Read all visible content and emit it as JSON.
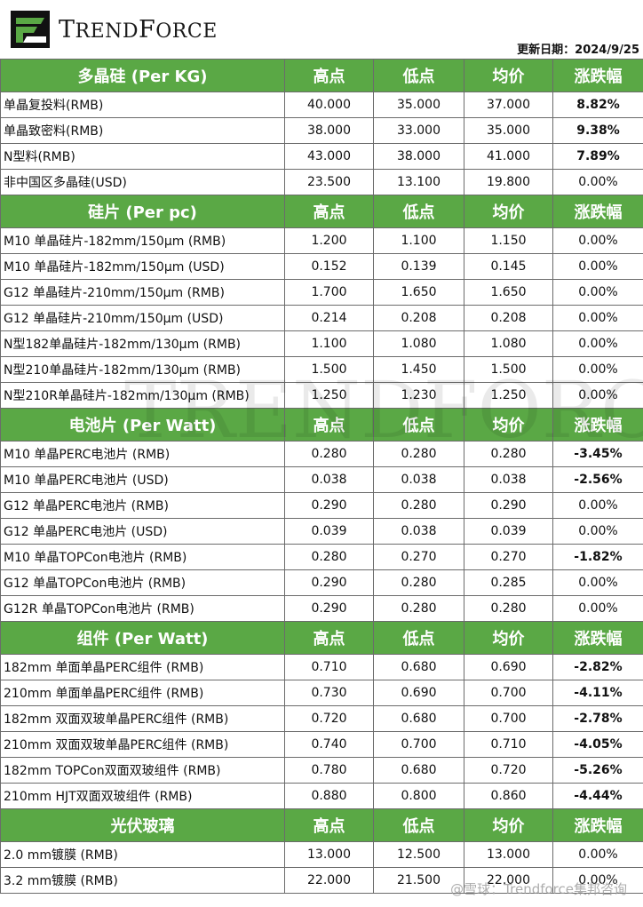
{
  "brand": {
    "name_big_T": "T",
    "name_rest1": "REND",
    "name_big_F": "F",
    "name_rest2": "ORCE"
  },
  "update_date": "更新日期：2024/9/25",
  "sections": [
    {
      "title": "多晶硅 (Per KG)",
      "cols": [
        "高点",
        "低点",
        "均价",
        "涨跌幅"
      ],
      "rows": [
        {
          "name": "单晶复投料(RMB)",
          "high": "40.000",
          "low": "35.000",
          "avg": "37.000",
          "chg": "8.82%",
          "trend": "up"
        },
        {
          "name": "单晶致密料(RMB)",
          "high": "38.000",
          "low": "33.000",
          "avg": "35.000",
          "chg": "9.38%",
          "trend": "up"
        },
        {
          "name": "N型料(RMB)",
          "high": "43.000",
          "low": "38.000",
          "avg": "41.000",
          "chg": "7.89%",
          "trend": "up"
        },
        {
          "name": "非中国区多晶硅(USD)",
          "high": "23.500",
          "low": "13.100",
          "avg": "19.800",
          "chg": "0.00%",
          "trend": "flat"
        }
      ]
    },
    {
      "title": "硅片 (Per pc)",
      "cols": [
        "高点",
        "低点",
        "均价",
        "涨跌幅"
      ],
      "rows": [
        {
          "name": "M10 单晶硅片-182mm/150μm (RMB)",
          "high": "1.200",
          "low": "1.100",
          "avg": "1.150",
          "chg": "0.00%",
          "trend": "flat"
        },
        {
          "name": "M10 单晶硅片-182mm/150μm (USD)",
          "high": "0.152",
          "low": "0.139",
          "avg": "0.145",
          "chg": "0.00%",
          "trend": "flat"
        },
        {
          "name": "G12 单晶硅片-210mm/150μm  (RMB)",
          "high": "1.700",
          "low": "1.650",
          "avg": "1.650",
          "chg": "0.00%",
          "trend": "flat"
        },
        {
          "name": "G12 单晶硅片-210mm/150μm  (USD)",
          "high": "0.214",
          "low": "0.208",
          "avg": "0.208",
          "chg": "0.00%",
          "trend": "flat"
        },
        {
          "name": "N型182单晶硅片-182mm/130μm (RMB)",
          "high": "1.100",
          "low": "1.080",
          "avg": "1.080",
          "chg": "0.00%",
          "trend": "flat"
        },
        {
          "name": "N型210单晶硅片-182mm/130μm (RMB)",
          "high": "1.500",
          "low": "1.450",
          "avg": "1.500",
          "chg": "0.00%",
          "trend": "flat"
        },
        {
          "name": "N型210R单晶硅片-182mm/130μm (RMB)",
          "high": "1.250",
          "low": "1.230",
          "avg": "1.250",
          "chg": "0.00%",
          "trend": "flat"
        }
      ]
    },
    {
      "title": "电池片 (Per Watt)",
      "cols": [
        "高点",
        "低点",
        "均价",
        "涨跌幅"
      ],
      "rows": [
        {
          "name": "M10 单晶PERC电池片 (RMB)",
          "high": "0.280",
          "low": "0.280",
          "avg": "0.280",
          "chg": "-3.45%",
          "trend": "down"
        },
        {
          "name": "M10 单晶PERC电池片 (USD)",
          "high": "0.038",
          "low": "0.038",
          "avg": "0.038",
          "chg": "-2.56%",
          "trend": "down"
        },
        {
          "name": "G12 单晶PERC电池片 (RMB)",
          "high": "0.290",
          "low": "0.280",
          "avg": "0.290",
          "chg": "0.00%",
          "trend": "flat"
        },
        {
          "name": "G12 单晶PERC电池片 (USD)",
          "high": "0.039",
          "low": "0.038",
          "avg": "0.039",
          "chg": "0.00%",
          "trend": "flat"
        },
        {
          "name": "M10 单晶TOPCon电池片 (RMB)",
          "high": "0.280",
          "low": "0.270",
          "avg": "0.270",
          "chg": "-1.82%",
          "trend": "down"
        },
        {
          "name": "G12 单晶TOPCon电池片 (RMB)",
          "high": "0.290",
          "low": "0.280",
          "avg": "0.285",
          "chg": "0.00%",
          "trend": "flat"
        },
        {
          "name": "G12R 单晶TOPCon电池片 (RMB)",
          "high": "0.290",
          "low": "0.280",
          "avg": "0.280",
          "chg": "0.00%",
          "trend": "flat"
        }
      ]
    },
    {
      "title": "组件 (Per Watt)",
      "cols": [
        "高点",
        "低点",
        "均价",
        "涨跌幅"
      ],
      "rows": [
        {
          "name": "182mm 单面单晶PERC组件 (RMB)",
          "high": "0.710",
          "low": "0.680",
          "avg": "0.690",
          "chg": "-2.82%",
          "trend": "down"
        },
        {
          "name": "210mm 单面单晶PERC组件 (RMB)",
          "high": "0.730",
          "low": "0.690",
          "avg": "0.700",
          "chg": "-4.11%",
          "trend": "down"
        },
        {
          "name": "182mm 双面双玻单晶PERC组件 (RMB)",
          "high": "0.720",
          "low": "0.680",
          "avg": "0.700",
          "chg": "-2.78%",
          "trend": "down"
        },
        {
          "name": "210mm 双面双玻单晶PERC组件 (RMB)",
          "high": "0.740",
          "low": "0.700",
          "avg": "0.710",
          "chg": "-4.05%",
          "trend": "down"
        },
        {
          "name": "182mm TOPCon双面双玻组件 (RMB)",
          "high": "0.780",
          "low": "0.680",
          "avg": "0.720",
          "chg": "-5.26%",
          "trend": "down"
        },
        {
          "name": "210mm HJT双面双玻组件 (RMB)",
          "high": "0.880",
          "low": "0.800",
          "avg": "0.860",
          "chg": "-4.44%",
          "trend": "down"
        }
      ]
    },
    {
      "title": "光伏玻璃",
      "cols": [
        "高点",
        "低点",
        "均价",
        "涨跌幅"
      ],
      "rows": [
        {
          "name": "2.0 mm镀膜 (RMB)",
          "high": "13.000",
          "low": "12.500",
          "avg": "13.000",
          "chg": "0.00%",
          "trend": "flat"
        },
        {
          "name": "3.2 mm镀膜 (RMB)",
          "high": "22.000",
          "low": "21.500",
          "avg": "22.000",
          "chg": "0.00%",
          "trend": "flat"
        }
      ]
    }
  ],
  "colors": {
    "header_green": "#5aa845",
    "up": "#a11b1b",
    "down": "#3f8a2c"
  },
  "footer_watermark": "@雪球：Trendforce集邦咨询"
}
